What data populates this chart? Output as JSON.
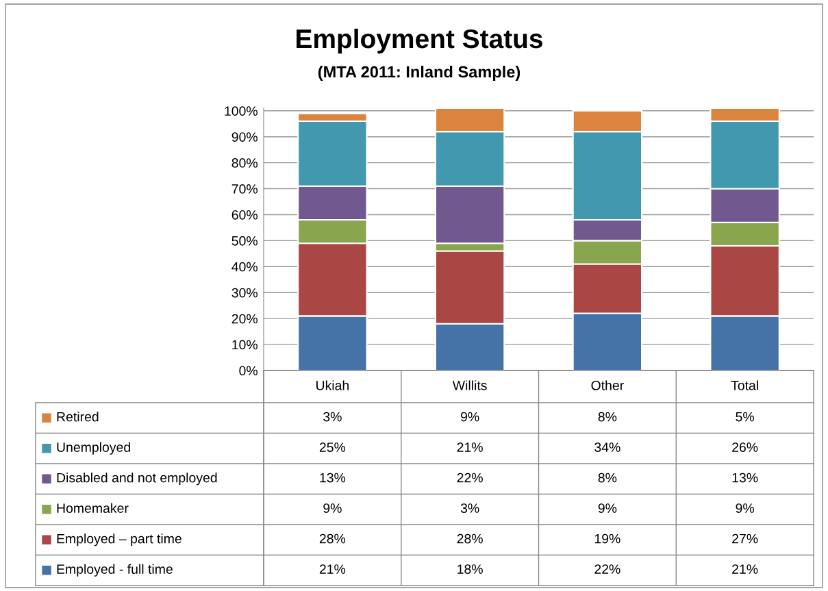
{
  "chart_data": {
    "type": "bar",
    "stacked": true,
    "title": "Employment Status",
    "subtitle": "(MTA 2011: Inland Sample)",
    "categories": [
      "Ukiah",
      "Willits",
      "Other",
      "Total"
    ],
    "series": [
      {
        "name": "Employed - full time",
        "color": "#4572a7",
        "values": [
          21,
          18,
          22,
          21
        ],
        "value_labels": [
          "21%",
          "18%",
          "22%",
          "21%"
        ]
      },
      {
        "name": "Employed – part time",
        "color": "#aa4643",
        "values": [
          28,
          28,
          19,
          27
        ],
        "value_labels": [
          "28%",
          "28%",
          "19%",
          "27%"
        ]
      },
      {
        "name": "Homemaker",
        "color": "#89a54e",
        "values": [
          9,
          3,
          9,
          9
        ],
        "value_labels": [
          "9%",
          "3%",
          "9%",
          "9%"
        ]
      },
      {
        "name": "Disabled and not employed",
        "color": "#71588f",
        "values": [
          13,
          22,
          8,
          13
        ],
        "value_labels": [
          "13%",
          "22%",
          "8%",
          "13%"
        ]
      },
      {
        "name": "Unemployed",
        "color": "#4198af",
        "values": [
          25,
          21,
          34,
          26
        ],
        "value_labels": [
          "25%",
          "21%",
          "34%",
          "26%"
        ]
      },
      {
        "name": "Retired",
        "color": "#db843d",
        "values": [
          3,
          9,
          8,
          5
        ],
        "value_labels": [
          "3%",
          "9%",
          "8%",
          "5%"
        ]
      }
    ],
    "ylim": [
      0,
      101
    ],
    "yticks": [
      {
        "value": 0,
        "label": "0%"
      },
      {
        "value": 10,
        "label": "10%"
      },
      {
        "value": 20,
        "label": "20%"
      },
      {
        "value": 30,
        "label": "30%"
      },
      {
        "value": 40,
        "label": "40%"
      },
      {
        "value": 50,
        "label": "50%"
      },
      {
        "value": 60,
        "label": "60%"
      },
      {
        "value": 70,
        "label": "70%"
      },
      {
        "value": 80,
        "label": "80%"
      },
      {
        "value": 90,
        "label": "90%"
      },
      {
        "value": 100,
        "label": "100%"
      }
    ],
    "grid": "y",
    "legend": "bottom"
  }
}
